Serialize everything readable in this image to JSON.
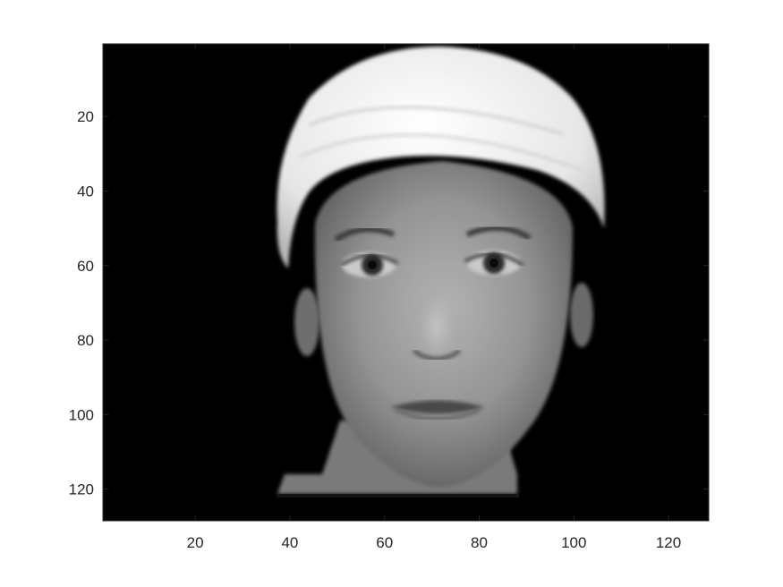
{
  "image": {
    "kind": "grayscale face image",
    "colormap": "gray",
    "x_range": [
      0.5,
      128.5
    ],
    "y_range": [
      0.5,
      128.5
    ],
    "y_direction": "reversed"
  },
  "axes": {
    "x_ticks": [
      "20",
      "40",
      "60",
      "80",
      "100",
      "120"
    ],
    "y_ticks": [
      "20",
      "40",
      "60",
      "80",
      "100",
      "120"
    ]
  },
  "colors": {
    "background": "#000000",
    "axis": "#262626",
    "headband": "#f0f0f0",
    "skin": "#9a9a9a"
  }
}
